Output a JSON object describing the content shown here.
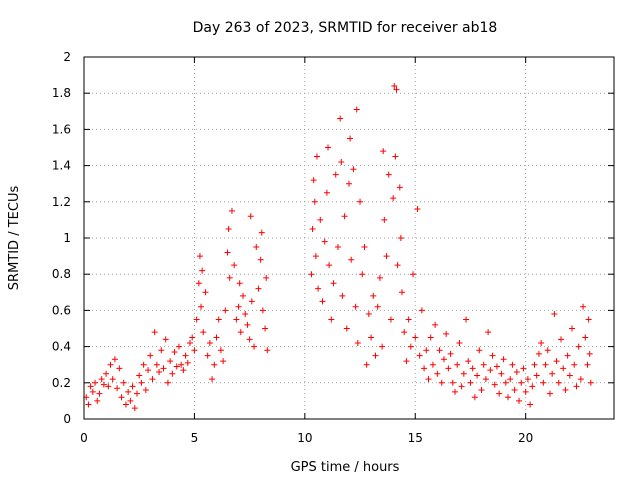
{
  "chart_data": {
    "type": "scatter",
    "title": "Day 263 of 2023, SRMTID for receiver ab18",
    "xlabel": "GPS time / hours",
    "ylabel": "SRMTID / TECUs",
    "xlim": [
      0,
      24
    ],
    "ylim": [
      0,
      2
    ],
    "x_ticks": [
      0,
      5,
      10,
      15,
      20
    ],
    "x_tick_labels": [
      "0",
      "5",
      "10",
      "15",
      "20"
    ],
    "y_ticks": [
      0,
      0.2,
      0.4,
      0.6,
      0.8,
      1,
      1.2,
      1.4,
      1.6,
      1.8,
      2
    ],
    "y_tick_labels": [
      "0",
      "0.2",
      "0.4",
      "0.6",
      "0.8",
      "1",
      "1.2",
      "1.4",
      "1.6",
      "1.8",
      "2"
    ],
    "grid": true,
    "marker": "plus",
    "color": "#ff0000",
    "series": [
      {
        "name": "SRMTID",
        "points": [
          [
            0.1,
            0.12
          ],
          [
            0.2,
            0.08
          ],
          [
            0.3,
            0.18
          ],
          [
            0.4,
            0.15
          ],
          [
            0.5,
            0.2
          ],
          [
            0.6,
            0.1
          ],
          [
            0.7,
            0.14
          ],
          [
            0.8,
            0.22
          ],
          [
            0.9,
            0.19
          ],
          [
            1.0,
            0.25
          ],
          [
            1.1,
            0.18
          ],
          [
            1.2,
            0.3
          ],
          [
            1.3,
            0.22
          ],
          [
            1.4,
            0.33
          ],
          [
            1.5,
            0.17
          ],
          [
            1.6,
            0.28
          ],
          [
            1.7,
            0.12
          ],
          [
            1.8,
            0.2
          ],
          [
            1.9,
            0.08
          ],
          [
            2.0,
            0.15
          ],
          [
            2.1,
            0.1
          ],
          [
            2.2,
            0.18
          ],
          [
            2.3,
            0.06
          ],
          [
            2.4,
            0.14
          ],
          [
            2.5,
            0.24
          ],
          [
            2.6,
            0.2
          ],
          [
            2.7,
            0.3
          ],
          [
            2.8,
            0.16
          ],
          [
            2.9,
            0.27
          ],
          [
            3.0,
            0.35
          ],
          [
            3.1,
            0.22
          ],
          [
            3.2,
            0.48
          ],
          [
            3.3,
            0.3
          ],
          [
            3.4,
            0.26
          ],
          [
            3.5,
            0.38
          ],
          [
            3.6,
            0.28
          ],
          [
            3.7,
            0.44
          ],
          [
            3.8,
            0.2
          ],
          [
            3.9,
            0.32
          ],
          [
            4.0,
            0.25
          ],
          [
            4.1,
            0.37
          ],
          [
            4.2,
            0.29
          ],
          [
            4.3,
            0.4
          ],
          [
            4.4,
            0.3
          ],
          [
            4.5,
            0.27
          ],
          [
            4.6,
            0.35
          ],
          [
            4.7,
            0.31
          ],
          [
            4.8,
            0.42
          ],
          [
            4.9,
            0.45
          ],
          [
            5.0,
            0.38
          ],
          [
            5.1,
            0.55
          ],
          [
            5.2,
            0.75
          ],
          [
            5.25,
            0.9
          ],
          [
            5.3,
            0.62
          ],
          [
            5.35,
            0.82
          ],
          [
            5.4,
            0.48
          ],
          [
            5.5,
            0.7
          ],
          [
            5.6,
            0.35
          ],
          [
            5.7,
            0.42
          ],
          [
            5.8,
            0.22
          ],
          [
            5.9,
            0.3
          ],
          [
            6.0,
            0.45
          ],
          [
            6.1,
            0.55
          ],
          [
            6.2,
            0.38
          ],
          [
            6.3,
            0.32
          ],
          [
            6.4,
            0.6
          ],
          [
            6.5,
            0.92
          ],
          [
            6.55,
            1.05
          ],
          [
            6.6,
            0.78
          ],
          [
            6.7,
            1.15
          ],
          [
            6.8,
            0.85
          ],
          [
            6.9,
            0.55
          ],
          [
            7.0,
            0.62
          ],
          [
            7.05,
            0.75
          ],
          [
            7.1,
            0.48
          ],
          [
            7.2,
            0.68
          ],
          [
            7.3,
            0.58
          ],
          [
            7.4,
            0.52
          ],
          [
            7.5,
            0.44
          ],
          [
            7.55,
            1.12
          ],
          [
            7.6,
            0.65
          ],
          [
            7.7,
            0.4
          ],
          [
            7.8,
            0.95
          ],
          [
            7.9,
            0.72
          ],
          [
            8.0,
            0.88
          ],
          [
            8.05,
            1.03
          ],
          [
            8.1,
            0.6
          ],
          [
            8.2,
            0.5
          ],
          [
            8.25,
            0.78
          ],
          [
            8.3,
            0.38
          ],
          [
            10.3,
            0.8
          ],
          [
            10.35,
            1.05
          ],
          [
            10.4,
            1.32
          ],
          [
            10.45,
            1.2
          ],
          [
            10.5,
            0.9
          ],
          [
            10.55,
            1.45
          ],
          [
            10.6,
            0.72
          ],
          [
            10.7,
            1.1
          ],
          [
            10.8,
            0.65
          ],
          [
            10.9,
            0.98
          ],
          [
            11.0,
            1.25
          ],
          [
            11.05,
            1.5
          ],
          [
            11.1,
            0.85
          ],
          [
            11.2,
            0.55
          ],
          [
            11.3,
            0.75
          ],
          [
            11.4,
            1.35
          ],
          [
            11.5,
            0.95
          ],
          [
            11.6,
            1.66
          ],
          [
            11.65,
            1.42
          ],
          [
            11.7,
            0.68
          ],
          [
            11.8,
            1.12
          ],
          [
            11.9,
            0.5
          ],
          [
            12.0,
            1.3
          ],
          [
            12.05,
            1.55
          ],
          [
            12.1,
            0.88
          ],
          [
            12.2,
            1.38
          ],
          [
            12.3,
            0.62
          ],
          [
            12.35,
            1.71
          ],
          [
            12.4,
            0.42
          ],
          [
            12.5,
            1.2
          ],
          [
            12.6,
            0.8
          ],
          [
            12.7,
            0.95
          ],
          [
            12.8,
            0.3
          ],
          [
            12.9,
            0.58
          ],
          [
            13.0,
            0.45
          ],
          [
            13.1,
            0.68
          ],
          [
            13.2,
            0.35
          ],
          [
            13.3,
            0.62
          ],
          [
            13.4,
            0.78
          ],
          [
            13.5,
            0.4
          ],
          [
            13.55,
            1.48
          ],
          [
            13.6,
            1.1
          ],
          [
            13.7,
            0.9
          ],
          [
            13.8,
            1.35
          ],
          [
            13.9,
            0.55
          ],
          [
            14.0,
            1.22
          ],
          [
            14.05,
            1.84
          ],
          [
            14.1,
            1.45
          ],
          [
            14.15,
            1.82
          ],
          [
            14.2,
            0.85
          ],
          [
            14.3,
            1.28
          ],
          [
            14.35,
            1.0
          ],
          [
            14.4,
            0.7
          ],
          [
            14.5,
            0.48
          ],
          [
            14.6,
            0.32
          ],
          [
            14.7,
            0.55
          ],
          [
            14.8,
            0.4
          ],
          [
            14.9,
            0.8
          ],
          [
            15.0,
            0.45
          ],
          [
            15.1,
            1.16
          ],
          [
            15.2,
            0.35
          ],
          [
            15.3,
            0.6
          ],
          [
            15.4,
            0.28
          ],
          [
            15.5,
            0.38
          ],
          [
            15.6,
            0.22
          ],
          [
            15.7,
            0.45
          ],
          [
            15.8,
            0.3
          ],
          [
            15.9,
            0.52
          ],
          [
            16.0,
            0.25
          ],
          [
            16.1,
            0.38
          ],
          [
            16.2,
            0.2
          ],
          [
            16.3,
            0.33
          ],
          [
            16.4,
            0.47
          ],
          [
            16.5,
            0.28
          ],
          [
            16.6,
            0.36
          ],
          [
            16.7,
            0.2
          ],
          [
            16.8,
            0.15
          ],
          [
            16.9,
            0.3
          ],
          [
            17.0,
            0.42
          ],
          [
            17.1,
            0.18
          ],
          [
            17.2,
            0.25
          ],
          [
            17.3,
            0.55
          ],
          [
            17.4,
            0.32
          ],
          [
            17.5,
            0.2
          ],
          [
            17.6,
            0.28
          ],
          [
            17.7,
            0.12
          ],
          [
            17.8,
            0.24
          ],
          [
            17.9,
            0.38
          ],
          [
            18.0,
            0.16
          ],
          [
            18.1,
            0.3
          ],
          [
            18.2,
            0.22
          ],
          [
            18.3,
            0.48
          ],
          [
            18.4,
            0.27
          ],
          [
            18.5,
            0.35
          ],
          [
            18.6,
            0.19
          ],
          [
            18.7,
            0.29
          ],
          [
            18.8,
            0.14
          ],
          [
            18.9,
            0.25
          ],
          [
            19.0,
            0.33
          ],
          [
            19.1,
            0.2
          ],
          [
            19.2,
            0.12
          ],
          [
            19.3,
            0.22
          ],
          [
            19.4,
            0.3
          ],
          [
            19.5,
            0.16
          ],
          [
            19.6,
            0.26
          ],
          [
            19.7,
            0.1
          ],
          [
            19.8,
            0.2
          ],
          [
            19.9,
            0.28
          ],
          [
            20.0,
            0.15
          ],
          [
            20.1,
            0.22
          ],
          [
            20.2,
            0.08
          ],
          [
            20.3,
            0.18
          ],
          [
            20.4,
            0.3
          ],
          [
            20.5,
            0.24
          ],
          [
            20.6,
            0.36
          ],
          [
            20.7,
            0.42
          ],
          [
            20.8,
            0.2
          ],
          [
            20.9,
            0.3
          ],
          [
            21.0,
            0.38
          ],
          [
            21.1,
            0.14
          ],
          [
            21.2,
            0.25
          ],
          [
            21.3,
            0.58
          ],
          [
            21.4,
            0.32
          ],
          [
            21.5,
            0.2
          ],
          [
            21.6,
            0.44
          ],
          [
            21.7,
            0.28
          ],
          [
            21.8,
            0.16
          ],
          [
            21.9,
            0.35
          ],
          [
            22.0,
            0.24
          ],
          [
            22.1,
            0.5
          ],
          [
            22.2,
            0.3
          ],
          [
            22.3,
            0.18
          ],
          [
            22.4,
            0.4
          ],
          [
            22.5,
            0.22
          ],
          [
            22.6,
            0.62
          ],
          [
            22.7,
            0.45
          ],
          [
            22.8,
            0.3
          ],
          [
            22.85,
            0.55
          ],
          [
            22.9,
            0.36
          ],
          [
            22.95,
            0.2
          ]
        ]
      }
    ]
  }
}
